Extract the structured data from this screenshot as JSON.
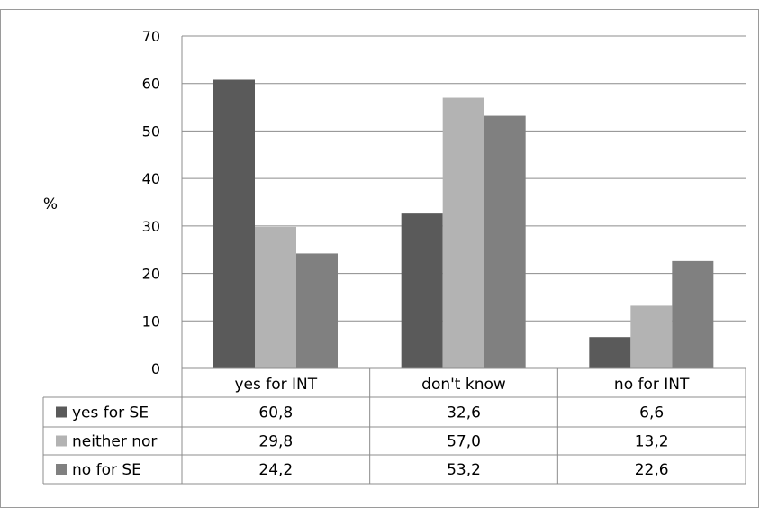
{
  "chart_data": {
    "type": "bar",
    "ylabel": "%",
    "ylim": [
      0,
      70
    ],
    "yticks": [
      0,
      10,
      20,
      30,
      40,
      50,
      60,
      70
    ],
    "ytick_labels": [
      "0",
      "10",
      "20",
      "30",
      "40",
      "50",
      "60",
      "70"
    ],
    "grid": true,
    "legend": "data-table",
    "categories": [
      "yes for INT",
      "don't know",
      "no for INT"
    ],
    "series": [
      {
        "name": "yes for SE",
        "color": "#5a5a5a",
        "values": [
          60.8,
          32.6,
          6.6
        ],
        "labels": [
          "60,8",
          "32,6",
          "6,6"
        ]
      },
      {
        "name": "neither nor",
        "color": "#b3b3b3",
        "values": [
          29.8,
          57.0,
          13.2
        ],
        "labels": [
          "29,8",
          "57,0",
          "13,2"
        ]
      },
      {
        "name": "no for SE",
        "color": "#808080",
        "values": [
          24.2,
          53.2,
          22.6
        ],
        "labels": [
          "24,2",
          "53,2",
          "22,6"
        ]
      }
    ]
  }
}
